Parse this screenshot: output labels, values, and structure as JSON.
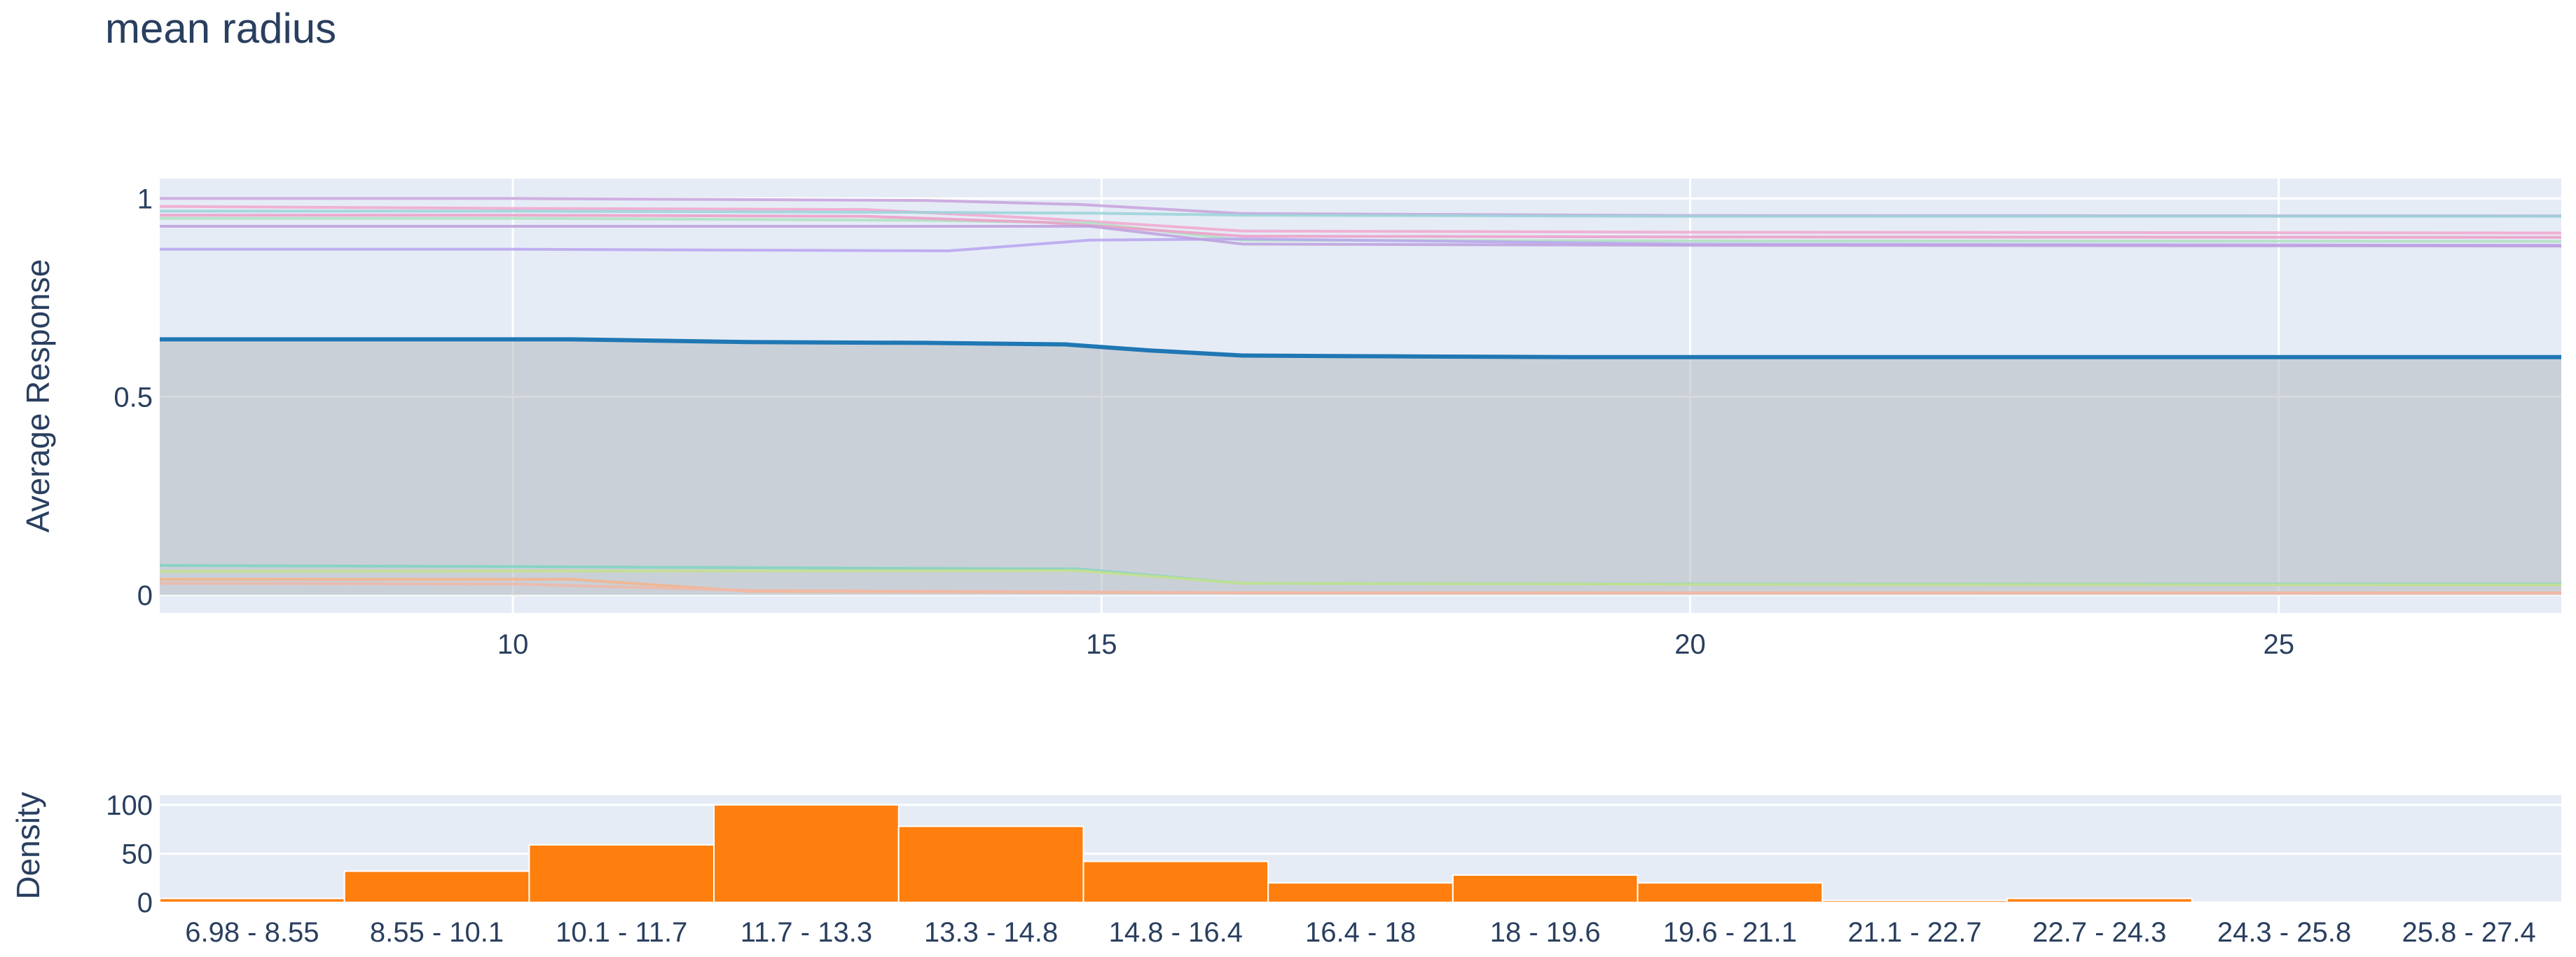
{
  "chart_data": [
    {
      "type": "line",
      "title": "mean radius",
      "xlabel": "",
      "ylabel": "Average Response",
      "xlim": [
        7.0,
        27.4
      ],
      "ylim": [
        -0.045,
        1.05
      ],
      "xticks": [
        10,
        15,
        20,
        25
      ],
      "yticks": [
        0,
        0.5,
        1
      ],
      "ytick_labels": [
        "0",
        "0.5",
        "1"
      ],
      "grid": true,
      "band": {
        "lower": 0,
        "upper_series": "average"
      },
      "average": {
        "color": "#1f77b4",
        "x": [
          7.0,
          8.5,
          10.5,
          12.0,
          13.5,
          14.7,
          15.4,
          16.2,
          17.5,
          19.0,
          20.5,
          22.5,
          25.0,
          27.4
        ],
        "y": [
          0.645,
          0.645,
          0.645,
          0.638,
          0.636,
          0.632,
          0.617,
          0.604,
          0.602,
          0.6,
          0.6,
          0.6,
          0.6,
          0.6
        ]
      },
      "series": [
        {
          "color": "#c8a2dc",
          "x": [
            7.0,
            10.0,
            13.5,
            14.8,
            16.2,
            20.0,
            27.4
          ],
          "y": [
            1.0,
            1.0,
            0.995,
            0.985,
            0.962,
            0.957,
            0.956
          ]
        },
        {
          "color": "#f2a7cf",
          "x": [
            7.0,
            10.0,
            13.0,
            14.6,
            16.2,
            20.0,
            27.4
          ],
          "y": [
            0.98,
            0.975,
            0.972,
            0.948,
            0.918,
            0.915,
            0.913
          ]
        },
        {
          "color": "#aee0c0",
          "x": [
            7.0,
            10.0,
            13.5,
            14.9,
            16.2,
            20.0,
            27.4
          ],
          "y": [
            0.95,
            0.95,
            0.945,
            0.938,
            0.895,
            0.893,
            0.892
          ]
        },
        {
          "color": "#9ad4d8",
          "x": [
            7.0,
            10.0,
            13.5,
            14.9,
            16.2,
            20.0,
            27.4
          ],
          "y": [
            0.968,
            0.968,
            0.965,
            0.963,
            0.958,
            0.955,
            0.955
          ]
        },
        {
          "color": "#ed9ec8",
          "x": [
            7.0,
            10.0,
            13.0,
            14.5,
            16.2,
            20.0,
            27.4
          ],
          "y": [
            0.958,
            0.958,
            0.955,
            0.94,
            0.905,
            0.903,
            0.902
          ]
        },
        {
          "color": "#b9a4ee",
          "x": [
            7.0,
            10.0,
            13.7,
            14.9,
            16.2,
            20.0,
            27.4
          ],
          "y": [
            0.872,
            0.872,
            0.868,
            0.895,
            0.898,
            0.885,
            0.882
          ]
        },
        {
          "color": "#bda0dd",
          "x": [
            7.0,
            14.9,
            16.2,
            20.0,
            27.4
          ],
          "y": [
            0.93,
            0.93,
            0.885,
            0.882,
            0.88
          ]
        },
        {
          "color": "#7fd3c4",
          "x": [
            7.0,
            10.0,
            13.0,
            14.8,
            16.2,
            20.0,
            27.4
          ],
          "y": [
            0.075,
            0.072,
            0.068,
            0.066,
            0.03,
            0.028,
            0.028
          ]
        },
        {
          "color": "#c6e08e",
          "x": [
            7.0,
            14.8,
            16.2,
            20.0,
            27.4
          ],
          "y": [
            0.06,
            0.062,
            0.03,
            0.027,
            0.026
          ]
        },
        {
          "color": "#f5b48a",
          "x": [
            7.0,
            10.5,
            12.0,
            14.0,
            16.2,
            27.4
          ],
          "y": [
            0.04,
            0.04,
            0.01,
            0.008,
            0.006,
            0.006
          ]
        },
        {
          "color": "#f0b8a8",
          "x": [
            7.0,
            10.0,
            12.0,
            16.2,
            27.4
          ],
          "y": [
            0.03,
            0.028,
            0.012,
            0.006,
            0.005
          ]
        }
      ]
    },
    {
      "type": "bar",
      "xlabel": "",
      "ylabel": "Density",
      "ylim": [
        0,
        110
      ],
      "yticks": [
        0,
        50,
        100
      ],
      "grid": true,
      "color": "#ff7f0e",
      "categories": [
        "6.98 - 8.55",
        "8.55 - 10.1",
        "10.1 - 11.7",
        "11.7 - 13.3",
        "13.3 - 14.8",
        "14.8 - 16.4",
        "16.4 - 18",
        "18 - 19.6",
        "19.6 - 21.1",
        "21.1 - 22.7",
        "22.7 - 24.3",
        "24.3 - 25.8",
        "25.8 - 27.4"
      ],
      "values": [
        4,
        32,
        59,
        100,
        78,
        42,
        20,
        28,
        20,
        2,
        4,
        0,
        0
      ]
    }
  ]
}
